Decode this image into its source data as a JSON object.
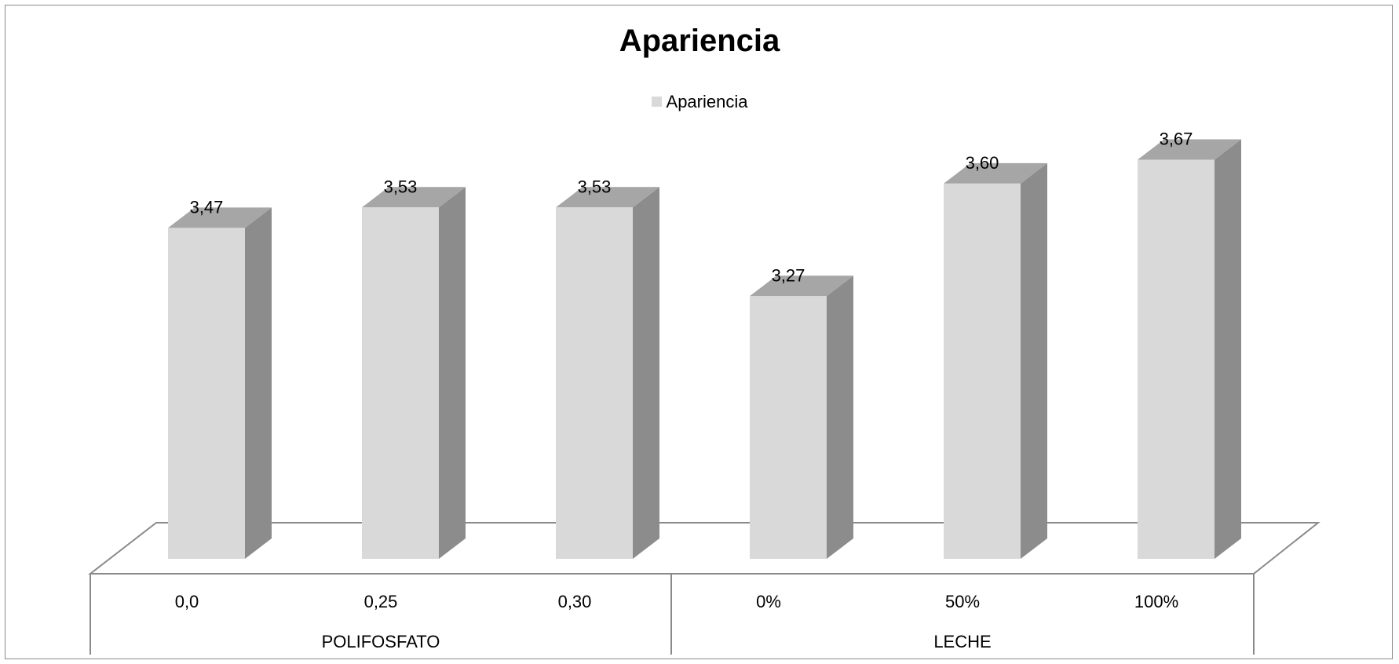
{
  "chart_data": {
    "type": "bar",
    "title": "Apariencia",
    "xlabel": "",
    "ylabel": "",
    "ylim": [
      2.5,
      4.0
    ],
    "grid": false,
    "legend": {
      "position": "top",
      "entries": [
        "Apariencia"
      ]
    },
    "categories": [
      "0,0",
      "0,25",
      "0,30",
      "0%",
      "50%",
      "100%"
    ],
    "groups": [
      {
        "label": "POLIFOSFATO",
        "categories": [
          "0,0",
          "0,25",
          "0,30"
        ]
      },
      {
        "label": "LECHE",
        "categories": [
          "0%",
          "50%",
          "100%"
        ]
      }
    ],
    "series": [
      {
        "name": "Apariencia",
        "values": [
          3.47,
          3.53,
          3.53,
          3.27,
          3.6,
          3.67
        ],
        "value_labels": [
          "3,47",
          "3,53",
          "3,53",
          "3,27",
          "3,60",
          "3,67"
        ],
        "color": "#d9d9d9"
      }
    ],
    "colors": {
      "front": "#d9d9d9",
      "top": "#a6a6a6",
      "side": "#8c8c8c",
      "axis": "#8a8a8a"
    }
  }
}
